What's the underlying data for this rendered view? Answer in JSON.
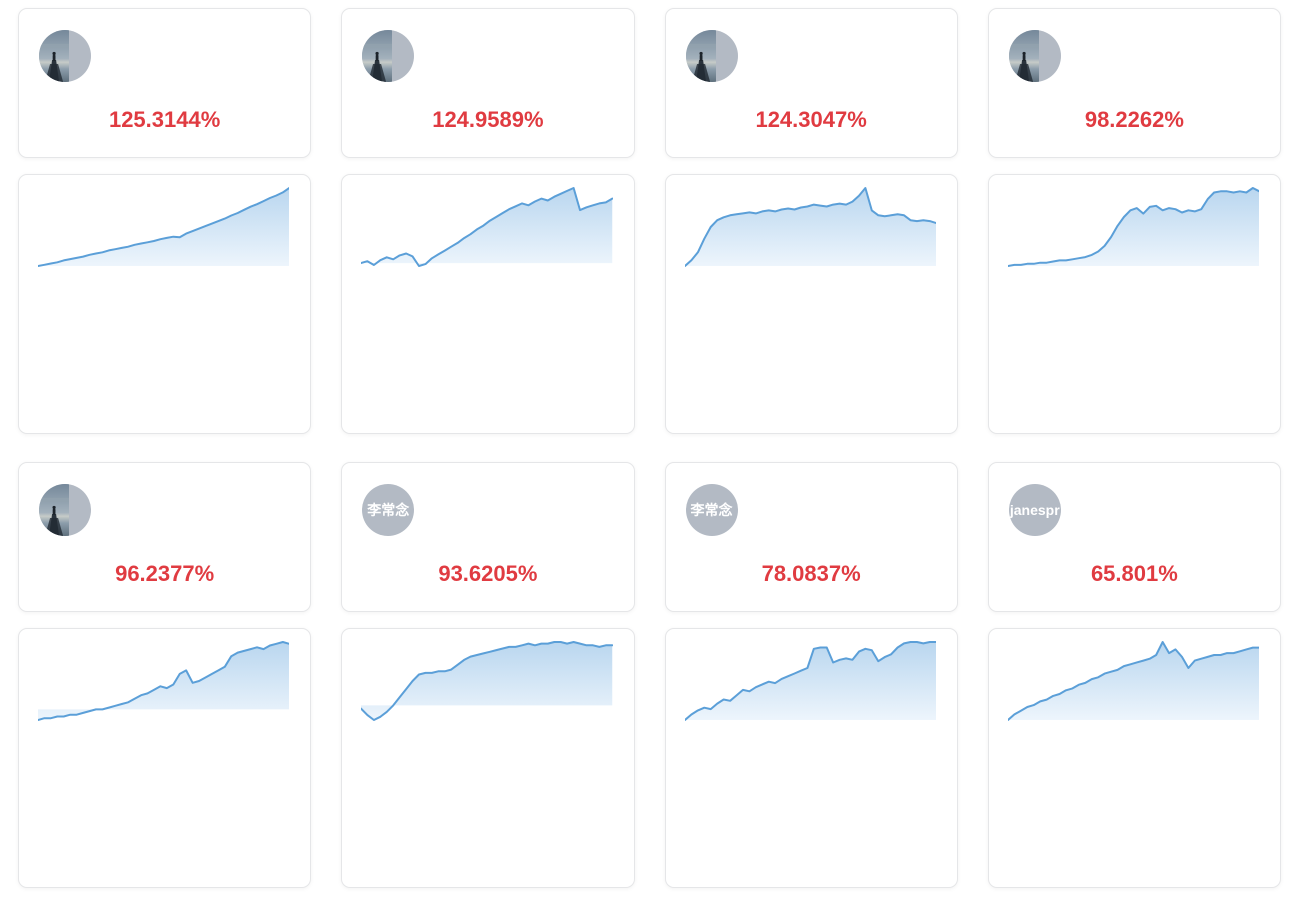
{
  "colors": {
    "accent_red": "#e03b41",
    "line_blue": "#5b9fd8",
    "fill_top": "#b9d6ef",
    "fill_bottom": "#edf5fc",
    "avatar_gray": "#b3bac4",
    "card_border": "#e5e6e8"
  },
  "cards": [
    {
      "avatar": {
        "type": "photo",
        "description": "person-on-pier-photo"
      },
      "percent": "125.3144%",
      "chart": {
        "type": "area",
        "baseline": 0,
        "values": [
          0,
          2,
          4,
          6,
          9,
          11,
          13,
          15,
          18,
          20,
          22,
          25,
          27,
          29,
          31,
          34,
          36,
          38,
          40,
          43,
          45,
          47,
          46,
          52,
          56,
          60,
          64,
          68,
          72,
          76,
          81,
          85,
          90,
          95,
          99,
          104,
          109,
          113,
          118,
          125
        ]
      }
    },
    {
      "avatar": {
        "type": "photo",
        "description": "person-on-pier-photo"
      },
      "percent": "124.9589%",
      "chart": {
        "type": "area",
        "baseline": 0,
        "values": [
          0,
          2,
          -2,
          3,
          6,
          4,
          8,
          10,
          7,
          -3,
          -1,
          5,
          9,
          13,
          17,
          21,
          26,
          30,
          35,
          39,
          44,
          48,
          52,
          56,
          59,
          62,
          60,
          64,
          67,
          65,
          69,
          72,
          75,
          78,
          55,
          58,
          60,
          62,
          63,
          67
        ]
      }
    },
    {
      "avatar": {
        "type": "photo",
        "description": "person-on-pier-photo"
      },
      "percent": "124.3047%",
      "chart": {
        "type": "area",
        "baseline": 0,
        "values": [
          0,
          6,
          14,
          28,
          40,
          47,
          50,
          52,
          53,
          54,
          55,
          54,
          56,
          57,
          56,
          58,
          59,
          58,
          60,
          61,
          63,
          62,
          61,
          63,
          64,
          63,
          66,
          72,
          80,
          57,
          52,
          51,
          52,
          53,
          52,
          47,
          46,
          47,
          46,
          44
        ]
      }
    },
    {
      "avatar": {
        "type": "photo",
        "description": "person-on-pier-photo"
      },
      "percent": "98.2262%",
      "chart": {
        "type": "area",
        "baseline": 0,
        "values": [
          0,
          1,
          1,
          2,
          2,
          3,
          3,
          4,
          5,
          5,
          6,
          7,
          8,
          10,
          13,
          18,
          26,
          36,
          44,
          50,
          52,
          47,
          53,
          54,
          50,
          52,
          51,
          48,
          50,
          49,
          51,
          60,
          66,
          67,
          67,
          66,
          67,
          66,
          70,
          67
        ]
      }
    },
    {
      "avatar": {
        "type": "photo",
        "description": "person-on-pier-photo"
      },
      "percent": "96.2377%",
      "chart": {
        "type": "area",
        "baseline": 0,
        "values": [
          -6,
          -5,
          -5,
          -4,
          -4,
          -3,
          -3,
          -2,
          -1,
          0,
          0,
          1,
          2,
          3,
          4,
          6,
          8,
          9,
          11,
          13,
          12,
          14,
          20,
          22,
          15,
          16,
          18,
          20,
          22,
          24,
          30,
          32,
          33,
          34,
          35,
          34,
          36,
          37,
          38,
          37
        ]
      }
    },
    {
      "avatar": {
        "type": "text",
        "text": "李常念"
      },
      "percent": "93.6205%",
      "chart": {
        "type": "area",
        "baseline": 0,
        "values": [
          -2,
          -6,
          -9,
          -7,
          -4,
          0,
          5,
          10,
          15,
          19,
          20,
          20,
          21,
          21,
          22,
          25,
          28,
          30,
          31,
          32,
          33,
          34,
          35,
          36,
          36,
          37,
          38,
          37,
          38,
          38,
          39,
          39,
          38,
          39,
          38,
          37,
          37,
          36,
          37,
          37
        ]
      }
    },
    {
      "avatar": {
        "type": "text",
        "text": "李常念"
      },
      "percent": "78.0837%",
      "chart": {
        "type": "area",
        "baseline": 0,
        "values": [
          0,
          4,
          7,
          9,
          8,
          12,
          15,
          14,
          18,
          22,
          21,
          24,
          26,
          28,
          27,
          30,
          32,
          34,
          36,
          38,
          52,
          53,
          53,
          42,
          44,
          45,
          44,
          50,
          52,
          51,
          43,
          46,
          48,
          53,
          56,
          57,
          57,
          56,
          57,
          57
        ]
      }
    },
    {
      "avatar": {
        "type": "text",
        "text": "janespr"
      },
      "percent": "65.801%",
      "chart": {
        "type": "area",
        "baseline": 0,
        "values": [
          0,
          3,
          5,
          7,
          8,
          10,
          11,
          13,
          14,
          16,
          17,
          19,
          20,
          22,
          23,
          25,
          26,
          27,
          29,
          30,
          31,
          32,
          33,
          35,
          42,
          36,
          38,
          34,
          28,
          32,
          33,
          34,
          35,
          35,
          36,
          36,
          37,
          38,
          39,
          39
        ]
      }
    }
  ]
}
